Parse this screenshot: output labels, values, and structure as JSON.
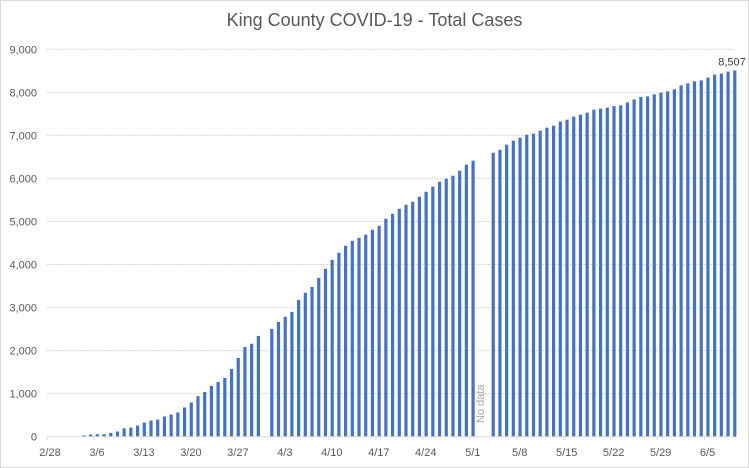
{
  "chart_data": {
    "type": "bar",
    "title": "King County COVID-19 - Total Cases",
    "xlabel": "",
    "ylabel": "",
    "ylim": [
      0,
      9000
    ],
    "yticks": [
      0,
      1000,
      2000,
      3000,
      4000,
      5000,
      6000,
      7000,
      8000,
      9000
    ],
    "ytick_labels": [
      "0",
      "1,000",
      "2,000",
      "3,000",
      "4,000",
      "5,000",
      "6,000",
      "7,000",
      "8,000",
      "9,000"
    ],
    "grid": true,
    "x_start_date": "2/28",
    "xtick_labels": [
      "2/28",
      "3/6",
      "3/13",
      "3/20",
      "3/27",
      "4/3",
      "4/10",
      "4/17",
      "4/24",
      "5/1",
      "5/8",
      "5/15",
      "5/22",
      "5/29",
      "6/5"
    ],
    "series": [
      {
        "name": "Total Cases",
        "color": "#4472c4",
        "points": [
          {
            "date": "2/28",
            "value": null
          },
          {
            "date": "2/29",
            "value": null
          },
          {
            "date": "3/1",
            "value": null
          },
          {
            "date": "3/2",
            "value": null
          },
          {
            "date": "3/3",
            "value": null
          },
          {
            "date": "3/4",
            "value": 30
          },
          {
            "date": "3/5",
            "value": 51
          },
          {
            "date": "3/6",
            "value": 58
          },
          {
            "date": "3/7",
            "value": 60
          },
          {
            "date": "3/8",
            "value": 88
          },
          {
            "date": "3/9",
            "value": 120
          },
          {
            "date": "3/10",
            "value": 195
          },
          {
            "date": "3/11",
            "value": 211
          },
          {
            "date": "3/12",
            "value": 258
          },
          {
            "date": "3/13",
            "value": 328
          },
          {
            "date": "3/14",
            "value": 375
          },
          {
            "date": "3/15",
            "value": 398
          },
          {
            "date": "3/16",
            "value": 468
          },
          {
            "date": "3/17",
            "value": 515
          },
          {
            "date": "3/18",
            "value": 562
          },
          {
            "date": "3/19",
            "value": 679
          },
          {
            "date": "3/20",
            "value": 796
          },
          {
            "date": "3/21",
            "value": 940
          },
          {
            "date": "3/22",
            "value": 1040
          },
          {
            "date": "3/23",
            "value": 1180
          },
          {
            "date": "3/24",
            "value": 1272
          },
          {
            "date": "3/25",
            "value": 1365
          },
          {
            "date": "3/26",
            "value": 1574
          },
          {
            "date": "3/27",
            "value": 1830
          },
          {
            "date": "3/28",
            "value": 2086
          },
          {
            "date": "3/29",
            "value": 2160
          },
          {
            "date": "3/30",
            "value": 2342
          },
          {
            "date": "3/31",
            "value": null
          },
          {
            "date": "4/1",
            "value": 2505
          },
          {
            "date": "4/2",
            "value": 2667
          },
          {
            "date": "4/3",
            "value": 2784
          },
          {
            "date": "4/4",
            "value": 2900
          },
          {
            "date": "4/5",
            "value": 3179
          },
          {
            "date": "4/6",
            "value": 3342
          },
          {
            "date": "4/7",
            "value": 3481
          },
          {
            "date": "4/8",
            "value": 3691
          },
          {
            "date": "4/9",
            "value": 3900
          },
          {
            "date": "4/10",
            "value": 4109
          },
          {
            "date": "4/11",
            "value": 4272
          },
          {
            "date": "4/12",
            "value": 4435
          },
          {
            "date": "4/13",
            "value": 4551
          },
          {
            "date": "4/14",
            "value": 4621
          },
          {
            "date": "4/15",
            "value": 4691
          },
          {
            "date": "4/16",
            "value": 4807
          },
          {
            "date": "4/17",
            "value": 4900
          },
          {
            "date": "4/18",
            "value": 5063
          },
          {
            "date": "4/19",
            "value": 5179
          },
          {
            "date": "4/20",
            "value": 5295
          },
          {
            "date": "4/21",
            "value": 5388
          },
          {
            "date": "4/22",
            "value": 5458
          },
          {
            "date": "4/23",
            "value": 5574
          },
          {
            "date": "4/24",
            "value": 5690
          },
          {
            "date": "4/25",
            "value": 5807
          },
          {
            "date": "4/26",
            "value": 5923
          },
          {
            "date": "4/27",
            "value": 5993
          },
          {
            "date": "4/28",
            "value": 6063
          },
          {
            "date": "4/29",
            "value": 6179
          },
          {
            "date": "4/30",
            "value": 6319
          },
          {
            "date": "5/1",
            "value": 6412
          },
          {
            "date": "5/2",
            "value": null
          },
          {
            "date": "5/3",
            "value": null
          },
          {
            "date": "5/4",
            "value": 6598
          },
          {
            "date": "5/5",
            "value": 6667
          },
          {
            "date": "5/6",
            "value": 6784
          },
          {
            "date": "5/7",
            "value": 6877
          },
          {
            "date": "5/8",
            "value": 6946
          },
          {
            "date": "5/9",
            "value": 7016
          },
          {
            "date": "5/10",
            "value": 7040
          },
          {
            "date": "5/11",
            "value": 7109
          },
          {
            "date": "5/12",
            "value": 7179
          },
          {
            "date": "5/13",
            "value": 7226
          },
          {
            "date": "5/14",
            "value": 7319
          },
          {
            "date": "5/15",
            "value": 7365
          },
          {
            "date": "5/16",
            "value": 7435
          },
          {
            "date": "5/17",
            "value": 7482
          },
          {
            "date": "5/18",
            "value": 7528
          },
          {
            "date": "5/19",
            "value": 7598
          },
          {
            "date": "5/20",
            "value": 7621
          },
          {
            "date": "5/21",
            "value": 7644
          },
          {
            "date": "5/22",
            "value": 7680
          },
          {
            "date": "5/23",
            "value": 7698
          },
          {
            "date": "5/24",
            "value": 7767
          },
          {
            "date": "5/25",
            "value": 7837
          },
          {
            "date": "5/26",
            "value": 7893
          },
          {
            "date": "5/27",
            "value": 7907
          },
          {
            "date": "5/28",
            "value": 7953
          },
          {
            "date": "5/29",
            "value": 7993
          },
          {
            "date": "5/30",
            "value": 8023
          },
          {
            "date": "5/31",
            "value": 8070
          },
          {
            "date": "6/1",
            "value": 8163
          },
          {
            "date": "6/2",
            "value": 8209
          },
          {
            "date": "6/3",
            "value": 8256
          },
          {
            "date": "6/4",
            "value": 8279
          },
          {
            "date": "6/5",
            "value": 8342
          },
          {
            "date": "6/6",
            "value": 8412
          },
          {
            "date": "6/7",
            "value": 8435
          },
          {
            "date": "6/8",
            "value": 8481
          },
          {
            "date": "6/9",
            "value": 8507
          }
        ]
      }
    ],
    "annotations": [
      {
        "text": "No data",
        "at_date": "5/2",
        "orientation": "vertical"
      }
    ],
    "data_labels": [
      {
        "date": "6/9",
        "text": "8,507"
      }
    ],
    "legend": "none"
  }
}
